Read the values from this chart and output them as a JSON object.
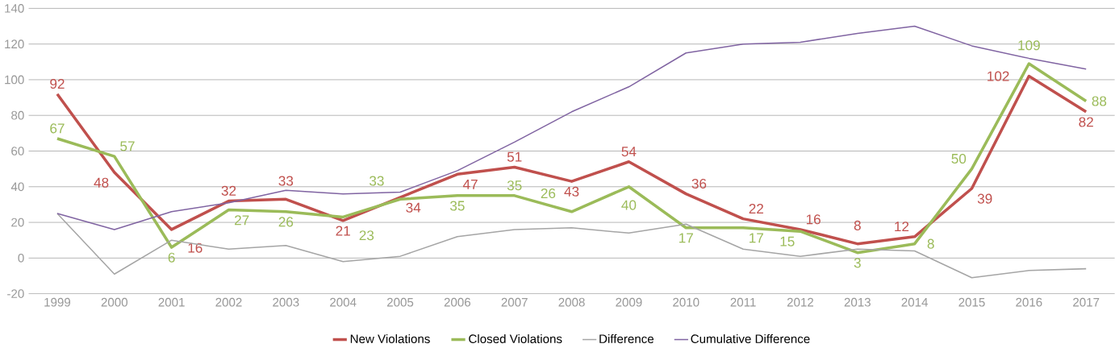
{
  "chart_data": {
    "type": "line",
    "categories": [
      "1999",
      "2000",
      "2001",
      "2002",
      "2003",
      "2004",
      "2005",
      "2006",
      "2007",
      "2008",
      "2009",
      "2010",
      "2011",
      "2012",
      "2013",
      "2014",
      "2015",
      "2016",
      "2017"
    ],
    "series": [
      {
        "name": "New Violations",
        "color": "#c0504d",
        "values": [
          92,
          48,
          16,
          32,
          33,
          21,
          34,
          47,
          51,
          43,
          54,
          36,
          22,
          16,
          8,
          12,
          39,
          102,
          82
        ],
        "value_labels": [
          "92",
          "48",
          "16",
          "32",
          "33",
          "21",
          "34",
          "47",
          "51",
          "43",
          "54",
          "36",
          "22",
          "16",
          "8",
          "12",
          "39",
          "102",
          "82"
        ]
      },
      {
        "name": "Closed Violations",
        "color": "#9bbb59",
        "values": [
          67,
          57,
          6,
          27,
          26,
          23,
          33,
          35,
          35,
          26,
          40,
          17,
          17,
          15,
          3,
          8,
          50,
          109,
          88
        ],
        "value_labels": [
          "67",
          "57",
          "6",
          "27",
          "26",
          "23",
          "33",
          "35",
          "35",
          "26",
          "40",
          "17",
          "17",
          "15",
          "3",
          "8",
          "50",
          "109",
          "88"
        ]
      },
      {
        "name": "Difference",
        "color": "#a5a5a5",
        "values": [
          25,
          -9,
          10,
          5,
          7,
          -2,
          1,
          12,
          16,
          17,
          14,
          19,
          5,
          1,
          5,
          4,
          -11,
          -7,
          -6
        ]
      },
      {
        "name": "Cumulative Difference",
        "color": "#8064a2",
        "values": [
          25,
          16,
          26,
          31,
          38,
          36,
          37,
          49,
          65,
          82,
          96,
          115,
          120,
          121,
          126,
          130,
          119,
          112,
          106
        ]
      }
    ],
    "ylim": [
      -20,
      140
    ],
    "yticks": [
      -20,
      0,
      20,
      40,
      60,
      80,
      100,
      120,
      140
    ],
    "grid": "y",
    "legend": "bottom",
    "marker": "none",
    "line_style": "solid"
  }
}
